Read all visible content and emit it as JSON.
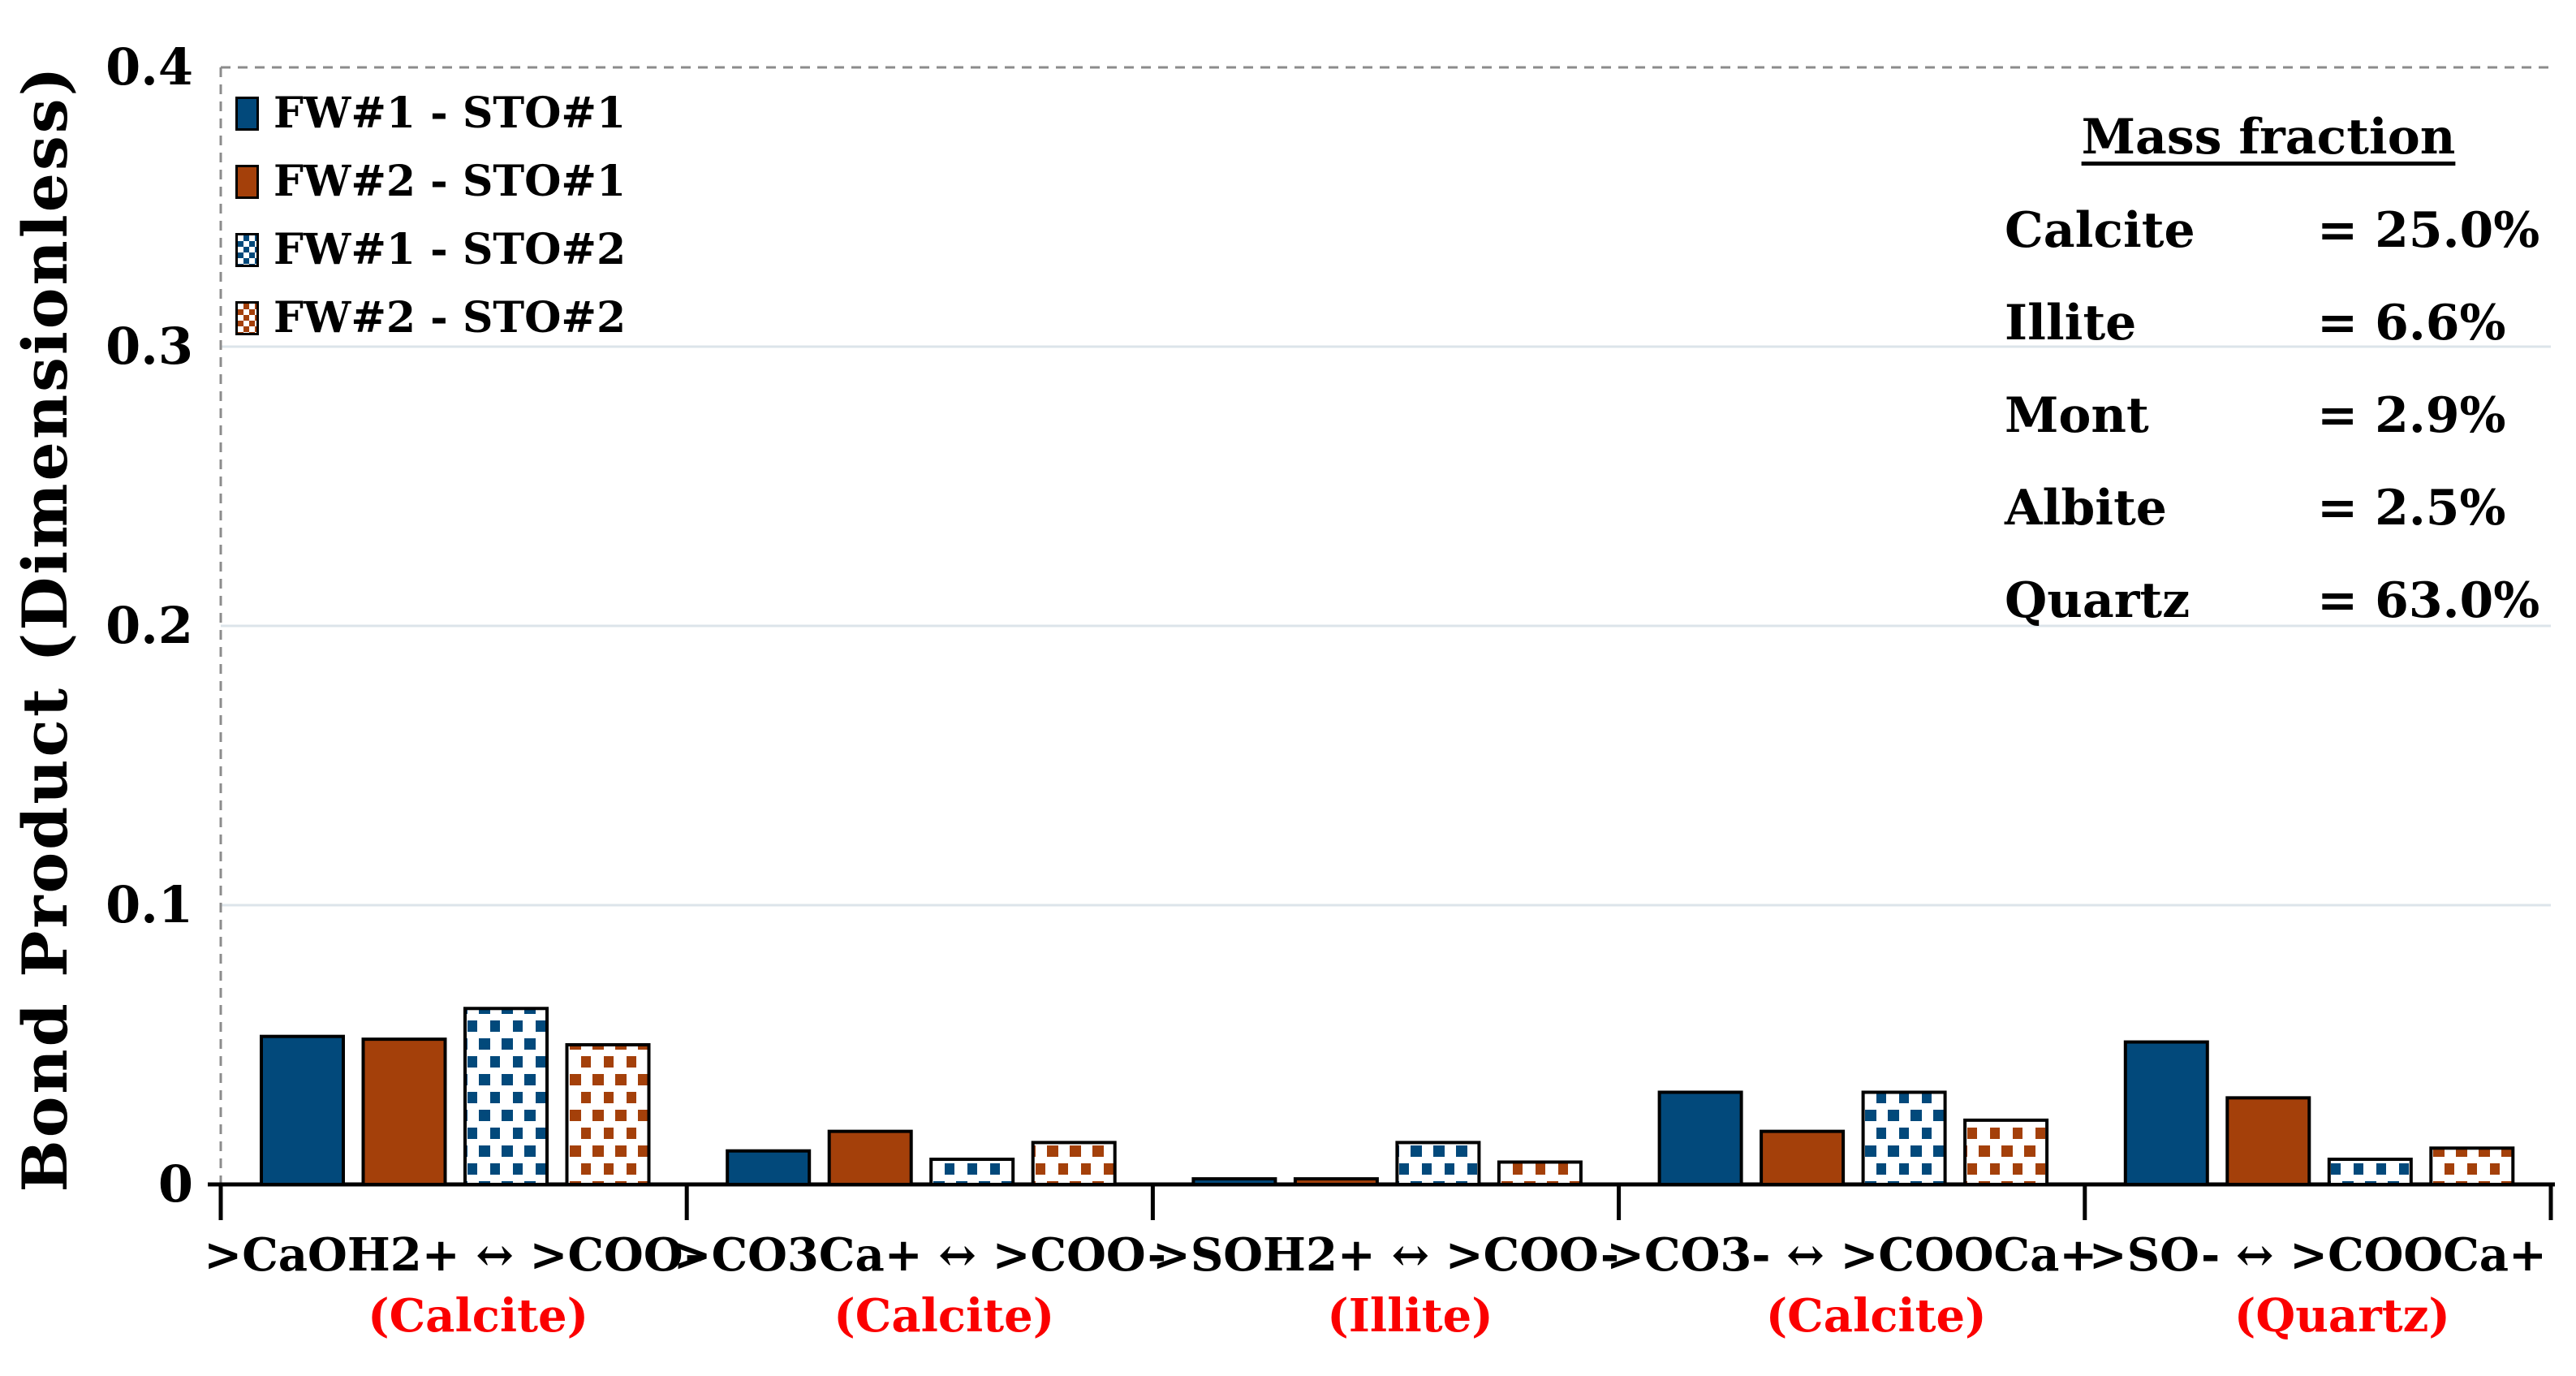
{
  "chart_data": {
    "type": "bar",
    "title": "",
    "xlabel": "",
    "ylabel": "Bond Product (Dimensionless)",
    "ylim": [
      0,
      0.4
    ],
    "yticks": [
      0,
      0.1,
      0.2,
      0.3,
      0.4
    ],
    "ytick_labels": [
      "0",
      "0.1",
      "0.2",
      "0.3",
      "0.4"
    ],
    "grid": "horizontal light solid gridlines at 0.1/0.2/0.3; dashed gray border on top (0.4) and left of plot area",
    "legend_position": "inside top-left",
    "categories": [
      {
        "reaction": ">CaOH2+ ↔ >COO-",
        "mineral": "(Calcite)"
      },
      {
        "reaction": ">CO3Ca+  ↔ >COO-",
        "mineral": "(Calcite)"
      },
      {
        "reaction": ">SOH2+ ↔ >COO-",
        "mineral": "(Illite)"
      },
      {
        "reaction": ">CO3- ↔ >COOCa+",
        "mineral": "(Calcite)"
      },
      {
        "reaction": ">SO- ↔ >COOCa+",
        "mineral": "(Quartz)"
      }
    ],
    "series": [
      {
        "name": "FW#1 - STO#1",
        "pattern": "solid",
        "color": "#02497B",
        "values": [
          0.053,
          0.012,
          0.002,
          0.033,
          0.051
        ]
      },
      {
        "name": "FW#2 - STO#1",
        "pattern": "solid",
        "color": "#A4400A",
        "values": [
          0.052,
          0.019,
          0.002,
          0.019,
          0.031
        ]
      },
      {
        "name": "FW#1 - STO#2",
        "pattern": "checker",
        "color": "#02497B",
        "values": [
          0.063,
          0.009,
          0.015,
          0.033,
          0.009
        ]
      },
      {
        "name": "FW#2 - STO#2",
        "pattern": "checker",
        "color": "#A4400A",
        "values": [
          0.05,
          0.015,
          0.008,
          0.023,
          0.013
        ]
      }
    ],
    "annotation": {
      "title": "Mass fraction",
      "rows": [
        {
          "label": "Calcite",
          "value": "= 25.0%"
        },
        {
          "label": "Illite",
          "value": "= 6.6%"
        },
        {
          "label": "Mont",
          "value": "= 2.9%"
        },
        {
          "label": "Albite",
          "value": "= 2.5%"
        },
        {
          "label": "Quartz",
          "value": "= 63.0%"
        }
      ]
    },
    "colors": {
      "series_blue": "#02497B",
      "series_orange": "#A4400A",
      "mineral_label_red": "#FB0000",
      "gridline": "#DCE4EA",
      "dashed_border": "#8C8C8C",
      "axis": "#000000",
      "background": "#FFFFFF"
    }
  }
}
